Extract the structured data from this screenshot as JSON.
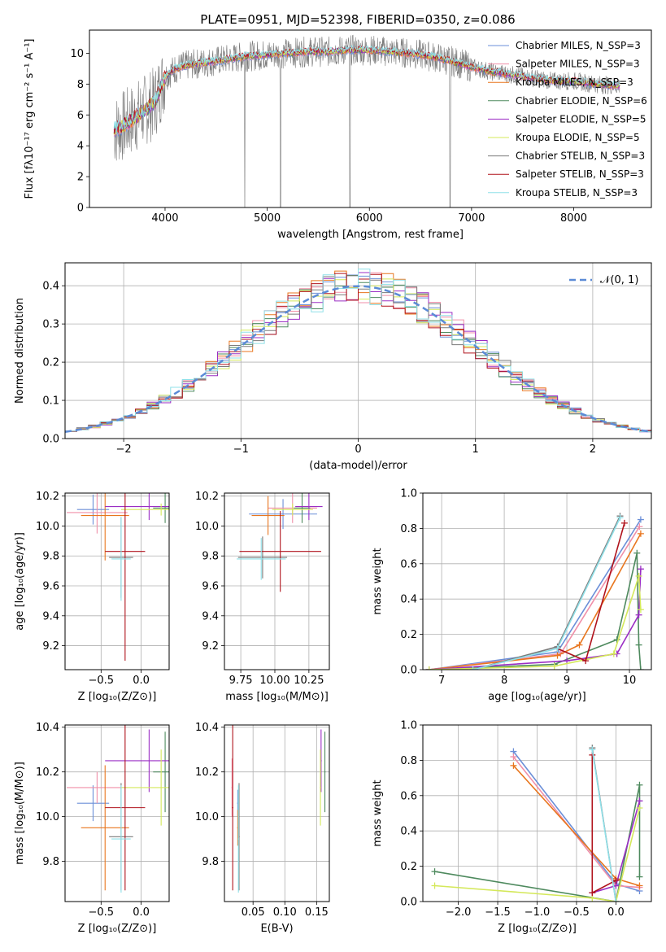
{
  "figure_title": "PLATE=0951, MJD=52398, FIBERID=0350, z=0.086",
  "series_colors": [
    "#6b8fd8",
    "#f08fa8",
    "#e8761e",
    "#4e8a5e",
    "#9b2ec4",
    "#d4e85a",
    "#7a7a7a",
    "#b0131c",
    "#8fe0e8"
  ],
  "chart_data": [
    {
      "id": "spectrum",
      "type": "line",
      "title": "PLATE=0951, MJD=52398, FIBERID=0350, z=0.086",
      "xlabel": "wavelength [Angstrom, rest frame]",
      "ylabel": "Flux [fλ10⁻¹⁷ erg cm⁻² s⁻¹ A⁻¹]",
      "xlim": [
        3260,
        8760
      ],
      "ylim": [
        0,
        11.5
      ],
      "xticks": [
        4000,
        5000,
        6000,
        7000,
        8000
      ],
      "yticks": [
        0,
        2,
        4,
        6,
        8,
        10
      ],
      "grid": false,
      "legend_position": "right",
      "legend": [
        {
          "label": "Chabrier MILES, N_SSP=3",
          "color": "#6b8fd8"
        },
        {
          "label": "Salpeter MILES, N_SSP=3",
          "color": "#f08fa8"
        },
        {
          "label": "Kroupa MILES, N_SSP=3",
          "color": "#e8761e"
        },
        {
          "label": "Chabrier ELODIE, N_SSP=6",
          "color": "#4e8a5e"
        },
        {
          "label": "Salpeter ELODIE, N_SSP=5",
          "color": "#9b2ec4"
        },
        {
          "label": "Kroupa ELODIE, N_SSP=5",
          "color": "#d4e85a"
        },
        {
          "label": "Chabrier STELIB, N_SSP=3",
          "color": "#7a7a7a"
        },
        {
          "label": "Salpeter STELIB, N_SSP=3",
          "color": "#b0131c"
        },
        {
          "label": "Kroupa STELIB, N_SSP=3",
          "color": "#8fe0e8"
        }
      ],
      "model_continuum": {
        "x": [
          3500,
          3600,
          3700,
          3800,
          3900,
          4000,
          4100,
          4200,
          4400,
          4600,
          4800,
          5000,
          5200,
          5400,
          5600,
          5800,
          6000,
          6200,
          6400,
          6600,
          6800,
          7000,
          7200,
          7400,
          7600,
          7800,
          8000,
          8200,
          8400
        ],
        "y": [
          5.0,
          5.3,
          5.8,
          6.3,
          6.8,
          8.5,
          9.0,
          9.2,
          9.4,
          9.6,
          9.8,
          9.9,
          10.0,
          10.1,
          10.1,
          10.2,
          10.2,
          10.1,
          10.0,
          9.8,
          9.5,
          9.1,
          8.8,
          8.6,
          8.4,
          8.2,
          8.2,
          8.0,
          7.9
        ]
      }
    },
    {
      "id": "residual_histogram",
      "type": "line",
      "xlabel": "(data-model)/error",
      "ylabel": "Normed distribution",
      "xlim": [
        -2.5,
        2.5
      ],
      "ylim": [
        0,
        0.46
      ],
      "xticks": [
        -2,
        -1,
        0,
        1,
        2
      ],
      "yticks": [
        0.0,
        0.1,
        0.2,
        0.3,
        0.4
      ],
      "grid": true,
      "legend_position": "top-right",
      "legend": [
        {
          "label": "𝒩(0, 1)",
          "color": "#5b8bd6"
        }
      ],
      "bin_edges": [
        -2.5,
        -2.4,
        -2.3,
        -2.2,
        -2.1,
        -2.0,
        -1.9,
        -1.8,
        -1.7,
        -1.6,
        -1.5,
        -1.4,
        -1.3,
        -1.2,
        -1.1,
        -1.0,
        -0.9,
        -0.8,
        -0.7,
        -0.6,
        -0.5,
        -0.4,
        -0.3,
        -0.2,
        -0.1,
        0.0,
        0.1,
        0.2,
        0.3,
        0.4,
        0.5,
        0.6,
        0.7,
        0.8,
        0.9,
        1.0,
        1.1,
        1.2,
        1.3,
        1.4,
        1.5,
        1.6,
        1.7,
        1.8,
        1.9,
        2.0,
        2.1,
        2.2,
        2.3,
        2.4,
        2.5
      ],
      "gaussian_reference": {
        "name": "𝒩(0, 1)",
        "mean": 0,
        "sigma": 1
      }
    },
    {
      "id": "age_vs_Z_errors",
      "type": "scatter",
      "xlabel": "Z [log₁₀(Z/Z⊙)]",
      "ylabel": "age  [log₁₀(age/yr)]",
      "xlim": [
        -0.95,
        0.35
      ],
      "ylim": [
        9.04,
        10.22
      ],
      "xticks": [
        -0.5,
        0.0
      ],
      "yticks": [
        9.2,
        9.4,
        9.6,
        9.8,
        10.0,
        10.2
      ],
      "grid": true
    },
    {
      "id": "age_vs_mass_errors",
      "type": "scatter",
      "xlabel": "mass [log₁₀(M/M⊙)]",
      "ylabel": "",
      "xlim": [
        9.63,
        10.4
      ],
      "ylim": [
        9.04,
        10.22
      ],
      "xticks": [
        9.75,
        10.0,
        10.25
      ],
      "yticks": [
        9.2,
        9.4,
        9.6,
        9.8,
        10.0,
        10.2
      ],
      "grid": true
    },
    {
      "id": "mass_weight_vs_age",
      "type": "line",
      "xlabel": "age  [log₁₀(age/yr)]",
      "ylabel": "mass weight",
      "xlim": [
        6.7,
        10.35
      ],
      "ylim": [
        0,
        1.0
      ],
      "xticks": [
        7,
        8,
        9,
        10
      ],
      "yticks": [
        0.0,
        0.2,
        0.4,
        0.6,
        0.8,
        1.0
      ],
      "grid": true,
      "series": [
        {
          "name": "Chabrier MILES",
          "color": "#6b8fd8",
          "x": [
            6.8,
            8.85,
            10.18
          ],
          "y": [
            0.0,
            0.1,
            0.85
          ]
        },
        {
          "name": "Salpeter MILES",
          "color": "#f08fa8",
          "x": [
            6.8,
            8.9,
            10.16
          ],
          "y": [
            0.0,
            0.09,
            0.81
          ]
        },
        {
          "name": "Kroupa MILES",
          "color": "#e8761e",
          "x": [
            6.8,
            8.85,
            9.2,
            10.18
          ],
          "y": [
            0.0,
            0.08,
            0.14,
            0.77
          ]
        },
        {
          "name": "Chabrier ELODIE",
          "color": "#4e8a5e",
          "x": [
            6.8,
            8.8,
            9.8,
            10.12,
            10.15,
            10.18
          ],
          "y": [
            0.0,
            0.03,
            0.17,
            0.66,
            0.14,
            0.0
          ]
        },
        {
          "name": "Salpeter ELODIE",
          "color": "#9b2ec4",
          "x": [
            6.8,
            9.0,
            9.8,
            10.15,
            10.18
          ],
          "y": [
            0.0,
            0.05,
            0.09,
            0.31,
            0.57
          ]
        },
        {
          "name": "Kroupa ELODIE",
          "color": "#d4e85a",
          "x": [
            6.8,
            8.8,
            9.75,
            10.15,
            10.18
          ],
          "y": [
            0.0,
            0.02,
            0.09,
            0.53,
            0.34
          ]
        },
        {
          "name": "Chabrier STELIB",
          "color": "#7a7a7a",
          "x": [
            7.5,
            8.85,
            9.85
          ],
          "y": [
            0.0,
            0.13,
            0.87
          ]
        },
        {
          "name": "Salpeter STELIB",
          "color": "#b0131c",
          "x": [
            8.85,
            9.3,
            9.92
          ],
          "y": [
            0.12,
            0.05,
            0.83
          ]
        },
        {
          "name": "Kroupa STELIB",
          "color": "#8fe0e8",
          "x": [
            7.5,
            8.85,
            9.85
          ],
          "y": [
            0.0,
            0.12,
            0.86
          ]
        }
      ]
    },
    {
      "id": "mass_vs_Z_errors",
      "type": "scatter",
      "xlabel": "Z [log₁₀(Z/Z⊙)]",
      "ylabel": "mass [log₁₀(M/M⊙)]",
      "xlim": [
        -0.95,
        0.35
      ],
      "ylim": [
        9.62,
        10.41
      ],
      "xticks": [
        -0.5,
        0.0
      ],
      "yticks": [
        9.8,
        10.0,
        10.2,
        10.4
      ],
      "grid": true
    },
    {
      "id": "mass_vs_ebv_errors",
      "type": "scatter",
      "xlabel": "E(B-V)",
      "ylabel": "",
      "xlim": [
        0.005,
        0.17
      ],
      "ylim": [
        9.62,
        10.41
      ],
      "xticks": [
        0.05,
        0.1,
        0.15
      ],
      "yticks": [
        9.8,
        10.0,
        10.2,
        10.4
      ],
      "grid": true
    },
    {
      "id": "mass_weight_vs_Z",
      "type": "line",
      "xlabel": "Z [log₁₀(Z/Z⊙)]",
      "ylabel": "mass weight",
      "xlim": [
        -2.45,
        0.45
      ],
      "ylim": [
        0,
        1.0
      ],
      "xticks": [
        -2.0,
        -1.5,
        -1.0,
        -0.5,
        0.0
      ],
      "yticks": [
        0.0,
        0.2,
        0.4,
        0.6,
        0.8,
        1.0
      ],
      "grid": true,
      "series": [
        {
          "name": "Chabrier MILES",
          "color": "#6b8fd8",
          "x": [
            -1.3,
            0.0,
            0.3
          ],
          "y": [
            0.85,
            0.1,
            0.06
          ]
        },
        {
          "name": "Salpeter MILES",
          "color": "#f08fa8",
          "x": [
            -1.3,
            0.0,
            0.3
          ],
          "y": [
            0.82,
            0.09,
            0.08
          ]
        },
        {
          "name": "Kroupa MILES",
          "color": "#e8761e",
          "x": [
            -1.3,
            0.0,
            0.3
          ],
          "y": [
            0.77,
            0.13,
            0.09
          ]
        },
        {
          "name": "Chabrier ELODIE",
          "color": "#4e8a5e",
          "x": [
            -2.3,
            0.0,
            0.3,
            0.3
          ],
          "y": [
            0.17,
            0.0,
            0.66,
            0.14
          ]
        },
        {
          "name": "Salpeter ELODIE",
          "color": "#9b2ec4",
          "x": [
            -0.3,
            0.0,
            0.3
          ],
          "y": [
            0.05,
            0.09,
            0.57
          ]
        },
        {
          "name": "Kroupa ELODIE",
          "color": "#d4e85a",
          "x": [
            -2.3,
            -0.3,
            0.0,
            0.3
          ],
          "y": [
            0.09,
            0.02,
            0.0,
            0.53
          ]
        },
        {
          "name": "Chabrier STELIB",
          "color": "#7a7a7a",
          "x": [
            -0.3,
            0.0
          ],
          "y": [
            0.87,
            0.0
          ]
        },
        {
          "name": "Salpeter STELIB",
          "color": "#b0131c",
          "x": [
            -0.3,
            -0.3,
            0.0
          ],
          "y": [
            0.83,
            0.05,
            0.12
          ]
        },
        {
          "name": "Kroupa STELIB",
          "color": "#8fe0e8",
          "x": [
            -0.3,
            0.0
          ],
          "y": [
            0.86,
            0.0
          ]
        }
      ]
    }
  ],
  "error_bars": {
    "Z_center": [
      -0.6,
      -0.55,
      -0.45,
      0.3,
      0.1,
      0.25,
      -0.25,
      -0.2,
      -0.25
    ],
    "Z_half": [
      0.2,
      0.38,
      0.3,
      0.15,
      0.55,
      0.5,
      0.15,
      0.25,
      0.12
    ],
    "age_center": [
      10.11,
      10.09,
      10.07,
      10.12,
      10.13,
      10.11,
      9.79,
      9.83,
      9.78
    ],
    "age_half": [
      0.1,
      0.14,
      0.3,
      0.1,
      0.09,
      0.04,
      0.27,
      0.73,
      0.28
    ],
    "mass_center": [
      10.06,
      10.13,
      9.95,
      10.2,
      10.25,
      10.13,
      9.91,
      10.04,
      9.9
    ],
    "mass_half": [
      0.08,
      0.07,
      0.28,
      0.18,
      0.14,
      0.17,
      0.24,
      0.37,
      0.24
    ],
    "mass_err_vs_age": [
      0.25,
      0.18,
      0.12,
      0.06,
      0.1,
      0.15,
      0.18,
      0.3,
      0.18
    ],
    "mass_age_center": [
      10.08,
      10.12,
      10.07,
      10.12,
      10.13,
      10.11,
      9.79,
      9.83,
      9.78
    ],
    "mass_age_halfy": [
      0.1,
      0.1,
      0.13,
      0.1,
      0.09,
      0.04,
      0.14,
      0.27,
      0.14
    ],
    "ebv_center": [
      0.026,
      0.017,
      0.026,
      0.163,
      0.157,
      0.156,
      0.028,
      0.018,
      0.027
    ],
    "ebv_half": [
      0.001,
      0.001,
      0.001,
      0.001,
      0.001,
      0.001,
      0.001,
      0.001,
      0.001
    ],
    "mass_ebv_halfy": [
      0.06,
      0.13,
      0.08,
      0.18,
      0.14,
      0.17,
      0.24,
      0.37,
      0.24
    ]
  }
}
